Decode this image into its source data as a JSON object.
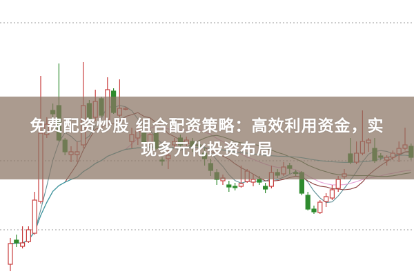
{
  "title": {
    "line1": "免费配资炒股 组合配资策略：高效利用资金，实",
    "line2": "现多元化投资布局"
  },
  "colors": {
    "up": "#c83c3c",
    "down": "#2e8b2e",
    "ma5": "#5f8f96",
    "ma10": "#8a3a3a",
    "ma20": "#e6a2d6",
    "ma30": "#3f6e3f",
    "ma60": "#3aa0ae",
    "grid": "#9a9a9a",
    "banner": "#8b7464"
  },
  "chart_data": {
    "type": "candlestick",
    "title": "",
    "xlabel": "",
    "ylabel": "",
    "ylim": [
      0,
      40
    ],
    "grid": "horizontal dotted",
    "moving_averages": [
      5,
      10,
      20,
      30,
      60
    ],
    "candles": [
      [
        1.7,
        5.5,
        0.7,
        4.7
      ],
      [
        5.2,
        6.0,
        4.2,
        4.8
      ],
      [
        4.3,
        7.2,
        4.0,
        4.8
      ],
      [
        5.0,
        7.2,
        4.8,
        6.7
      ],
      [
        6.2,
        12.2,
        6.0,
        11.0
      ],
      [
        10.8,
        29.0,
        10.5,
        20.7
      ],
      [
        20.5,
        23.0,
        20.0,
        22.0
      ],
      [
        24.0,
        25.0,
        23.0,
        23.5
      ],
      [
        24.7,
        30.8,
        19.5,
        19.7
      ],
      [
        19.7,
        20.0,
        17.5,
        18.0
      ],
      [
        17.6,
        18.8,
        16.5,
        18.0
      ],
      [
        17.6,
        19.5,
        16.5,
        18.0
      ],
      [
        19.0,
        31.0,
        18.5,
        24.7
      ],
      [
        25.0,
        25.5,
        22.5,
        22.7
      ],
      [
        23.0,
        27.0,
        22.5,
        25.3
      ],
      [
        25.7,
        26.0,
        23.0,
        23.3
      ],
      [
        22.7,
        28.8,
        22.0,
        27.0
      ],
      [
        26.8,
        27.2,
        23.5,
        23.7
      ],
      [
        23.3,
        28.5,
        23.0,
        24.3
      ],
      [
        24.2,
        24.5,
        24.0,
        24.3
      ],
      [
        19.5,
        21.5,
        18.5,
        20.5
      ],
      [
        20.0,
        22.0,
        19.0,
        21.0
      ],
      [
        20.7,
        21.0,
        18.5,
        19.3
      ],
      [
        19.3,
        21.0,
        19.0,
        20.5
      ],
      [
        20.7,
        21.0,
        18.2,
        18.5
      ],
      [
        16.8,
        17.2,
        16.0,
        16.7
      ],
      [
        17.0,
        18.5,
        15.5,
        17.5
      ],
      [
        19.0,
        20.0,
        18.5,
        19.5
      ],
      [
        20.0,
        20.5,
        18.5,
        19.0
      ],
      [
        19.2,
        20.2,
        18.8,
        19.7
      ],
      [
        19.5,
        20.0,
        18.0,
        18.8
      ],
      [
        19.0,
        19.5,
        18.5,
        18.9
      ],
      [
        17.8,
        18.5,
        16.0,
        17.0
      ],
      [
        16.3,
        17.0,
        14.5,
        15.3
      ],
      [
        15.0,
        15.5,
        13.2,
        14.0
      ],
      [
        13.8,
        14.7,
        13.2,
        14.2
      ],
      [
        13.2,
        13.8,
        12.2,
        12.9
      ],
      [
        13.0,
        13.5,
        12.4,
        12.8
      ],
      [
        13.0,
        16.0,
        12.8,
        13.4
      ],
      [
        13.7,
        15.5,
        13.5,
        15.2
      ],
      [
        13.6,
        14.8,
        13.0,
        14.0
      ],
      [
        14.0,
        14.5,
        13.2,
        13.6
      ],
      [
        13.0,
        13.5,
        12.0,
        12.6
      ],
      [
        13.0,
        16.0,
        12.7,
        15.0
      ],
      [
        15.0,
        15.5,
        14.2,
        14.6
      ],
      [
        14.8,
        16.5,
        14.5,
        15.8
      ],
      [
        16.0,
        16.4,
        14.8,
        15.6
      ],
      [
        15.0,
        15.4,
        14.5,
        14.9
      ],
      [
        15.0,
        15.2,
        11.7,
        12.0
      ],
      [
        11.7,
        12.2,
        9.5,
        9.7
      ],
      [
        9.7,
        10.2,
        9.0,
        9.3
      ],
      [
        9.2,
        11.0,
        9.0,
        10.7
      ],
      [
        10.8,
        12.0,
        10.0,
        11.5
      ],
      [
        11.3,
        13.2,
        11.0,
        12.5
      ],
      [
        12.7,
        14.5,
        12.2,
        14.0
      ],
      [
        14.4,
        15.5,
        14.0,
        14.8
      ],
      [
        17.7,
        20.0,
        16.2,
        16.5
      ],
      [
        16.5,
        19.5,
        16.2,
        17.8
      ],
      [
        17.8,
        24.0,
        17.5,
        19.5
      ],
      [
        19.3,
        20.0,
        18.0,
        19.7
      ],
      [
        18.5,
        20.0,
        16.4,
        16.7
      ],
      [
        17.4,
        17.8,
        16.8,
        17.2
      ],
      [
        16.8,
        17.5,
        16.0,
        17.2
      ],
      [
        17.2,
        18.2,
        16.8,
        17.8
      ],
      [
        17.7,
        19.5,
        16.5,
        18.5
      ],
      [
        18.5,
        21.5,
        18.2,
        19.0
      ],
      [
        18.8,
        19.2,
        16.8,
        17.2
      ]
    ],
    "candle_fields": [
      "open",
      "high",
      "low",
      "close"
    ]
  }
}
